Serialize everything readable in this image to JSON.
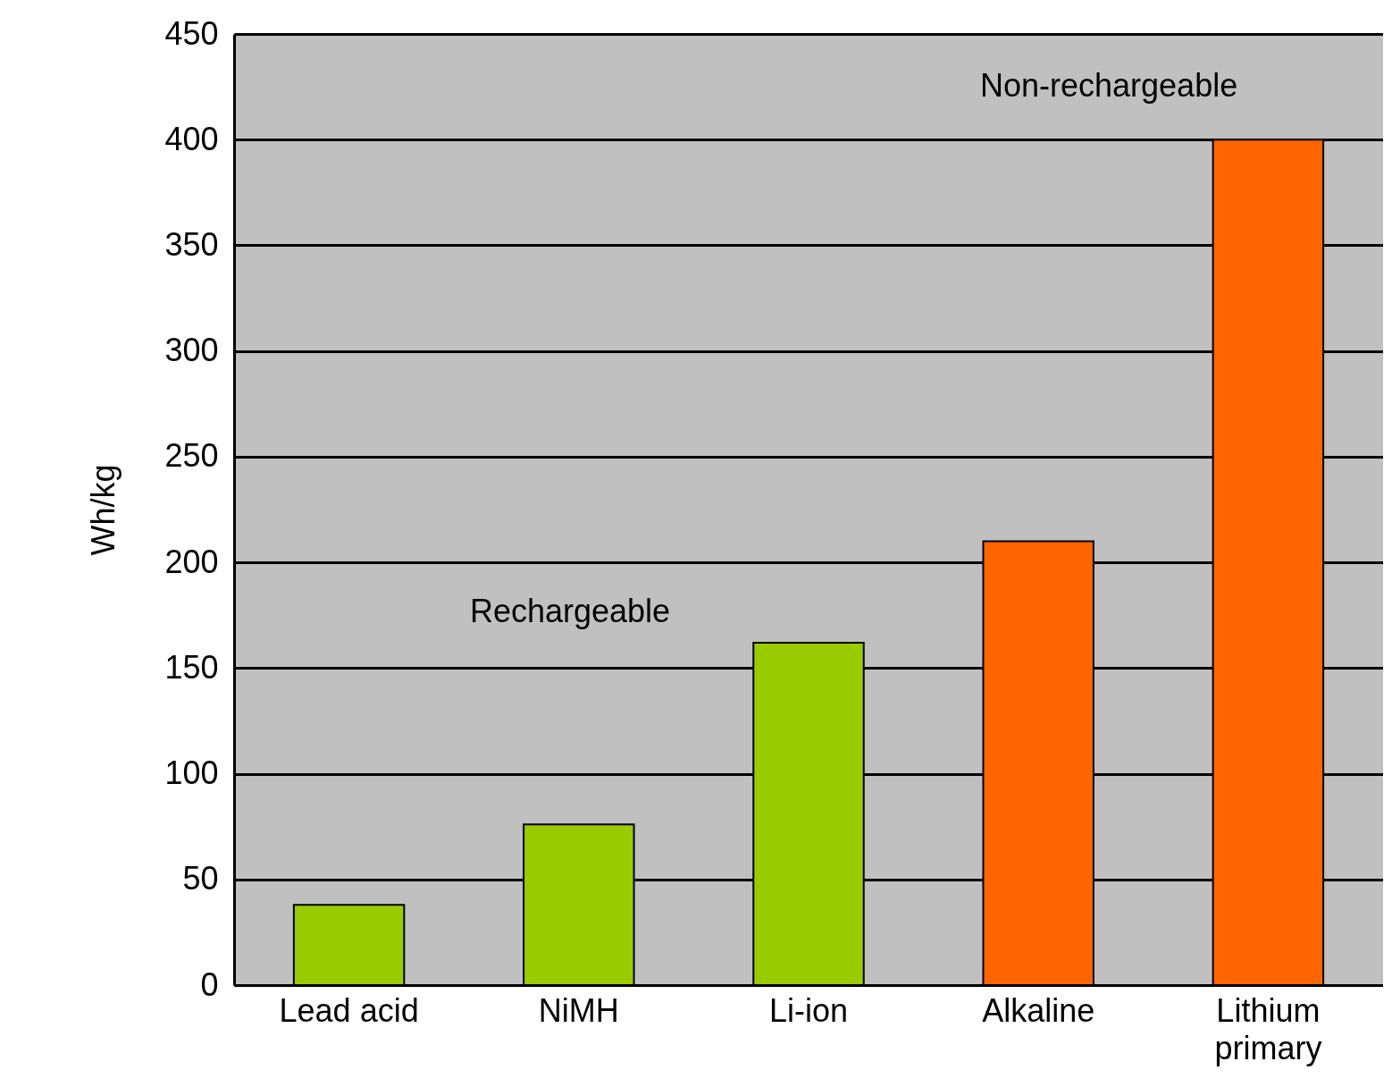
{
  "chart_data": {
    "type": "bar",
    "ylabel": "Wh/kg",
    "categories": [
      "Lead acid",
      "NiMH",
      "Li-ion",
      "Alkaline",
      "Lithium primary"
    ],
    "values": [
      38,
      76,
      162,
      210,
      400
    ],
    "colors": [
      "#99cc00",
      "#99cc00",
      "#99cc00",
      "#ff6600",
      "#ff6600"
    ],
    "ylim": [
      0,
      450
    ],
    "yticks": [
      0,
      50,
      100,
      150,
      200,
      250,
      300,
      350,
      400,
      450
    ],
    "grid": "y",
    "annotations": [
      "Rechargeable",
      "Non-rechargeable"
    ]
  }
}
